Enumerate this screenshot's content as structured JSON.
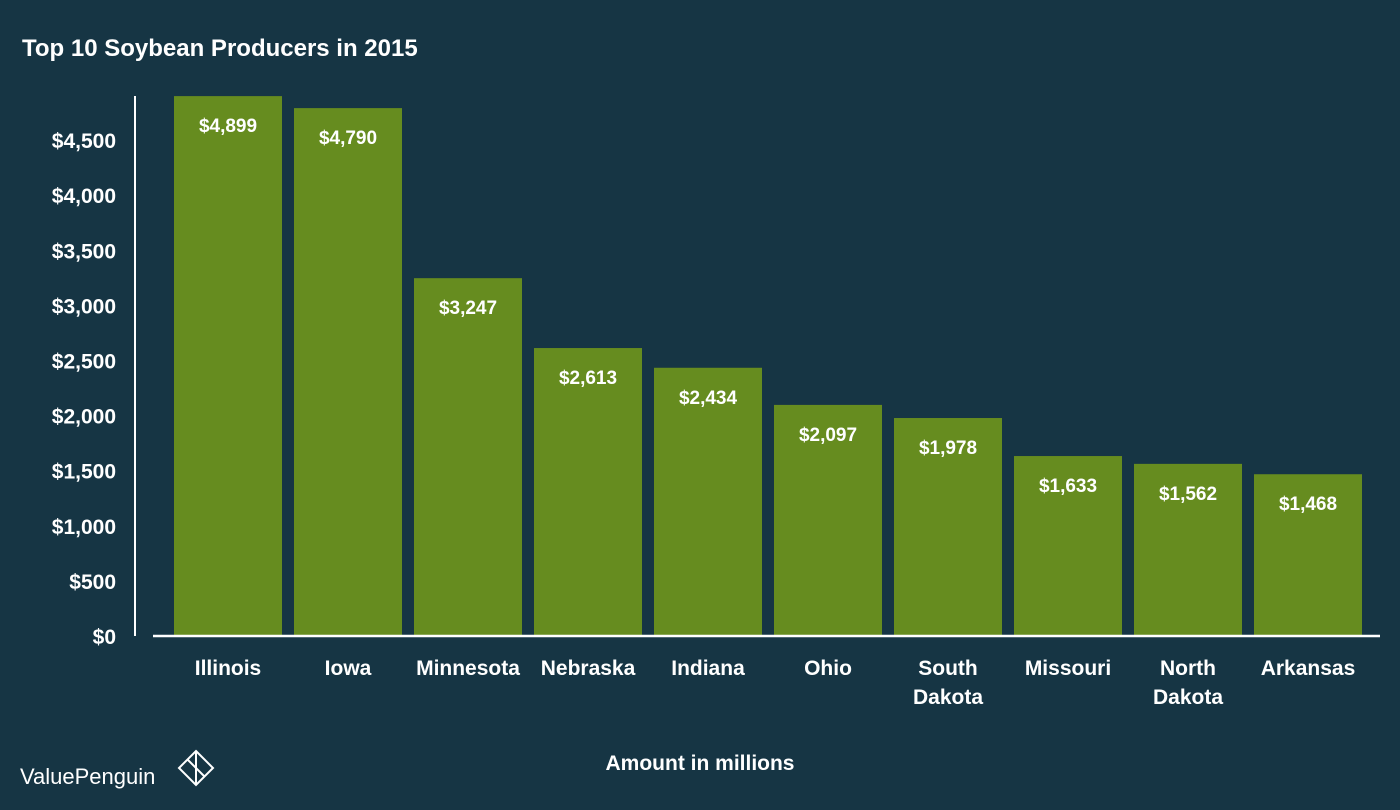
{
  "brand": {
    "name": "ValuePenguin",
    "logo_icon": "valuepenguin-logo-icon"
  },
  "colors": {
    "background": "#163544",
    "bar": "#668c1f",
    "axis": "#ffffff",
    "text": "#ffffff"
  },
  "chart_data": {
    "type": "bar",
    "title": "Top 10 Soybean Producers in 2015",
    "xlabel": "Amount in millions",
    "ylabel": "",
    "categories": [
      "Illinois",
      "Iowa",
      "Minnesota",
      "Nebraska",
      "Indiana",
      "Ohio",
      "South Dakota",
      "Missouri",
      "North Dakota",
      "Arkansas"
    ],
    "category_lines": [
      [
        "Illinois"
      ],
      [
        "Iowa"
      ],
      [
        "Minnesota"
      ],
      [
        "Nebraska"
      ],
      [
        "Indiana"
      ],
      [
        "Ohio"
      ],
      [
        "South",
        "Dakota"
      ],
      [
        "Missouri"
      ],
      [
        "North",
        "Dakota"
      ],
      [
        "Arkansas"
      ]
    ],
    "values": [
      4899,
      4790,
      3247,
      2613,
      2434,
      2097,
      1978,
      1633,
      1562,
      1468
    ],
    "data_labels": [
      "$4,899",
      "$4,790",
      "$3,247",
      "$2,613",
      "$2,434",
      "$2,097",
      "$1,978",
      "$1,633",
      "$1,562",
      "$1,468"
    ],
    "yticks": [
      0,
      500,
      1000,
      1500,
      2000,
      2500,
      3000,
      3500,
      4000,
      4500
    ],
    "ytick_labels": [
      "$0",
      "$500",
      "$1,000",
      "$1,500",
      "$2,000",
      "$2,500",
      "$3,000",
      "$3,500",
      "$4,000",
      "$4,500"
    ],
    "ylim": [
      0,
      4900
    ],
    "grid": false,
    "legend": "none"
  }
}
